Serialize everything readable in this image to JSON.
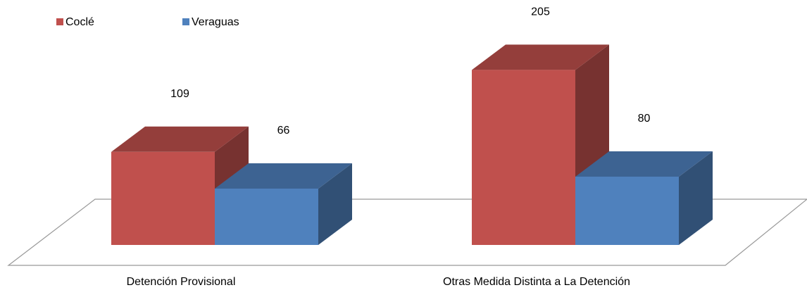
{
  "chart_data": {
    "type": "bar3d",
    "categories": [
      "Detención Provisional",
      "Otras Medida Distinta a La Detención"
    ],
    "series": [
      {
        "name": "Coclé",
        "color": "#C0504D",
        "values": [
          109,
          205
        ]
      },
      {
        "name": "Veraguas",
        "color": "#4F81BD",
        "values": [
          66,
          80
        ]
      }
    ],
    "legend": "top-left"
  }
}
